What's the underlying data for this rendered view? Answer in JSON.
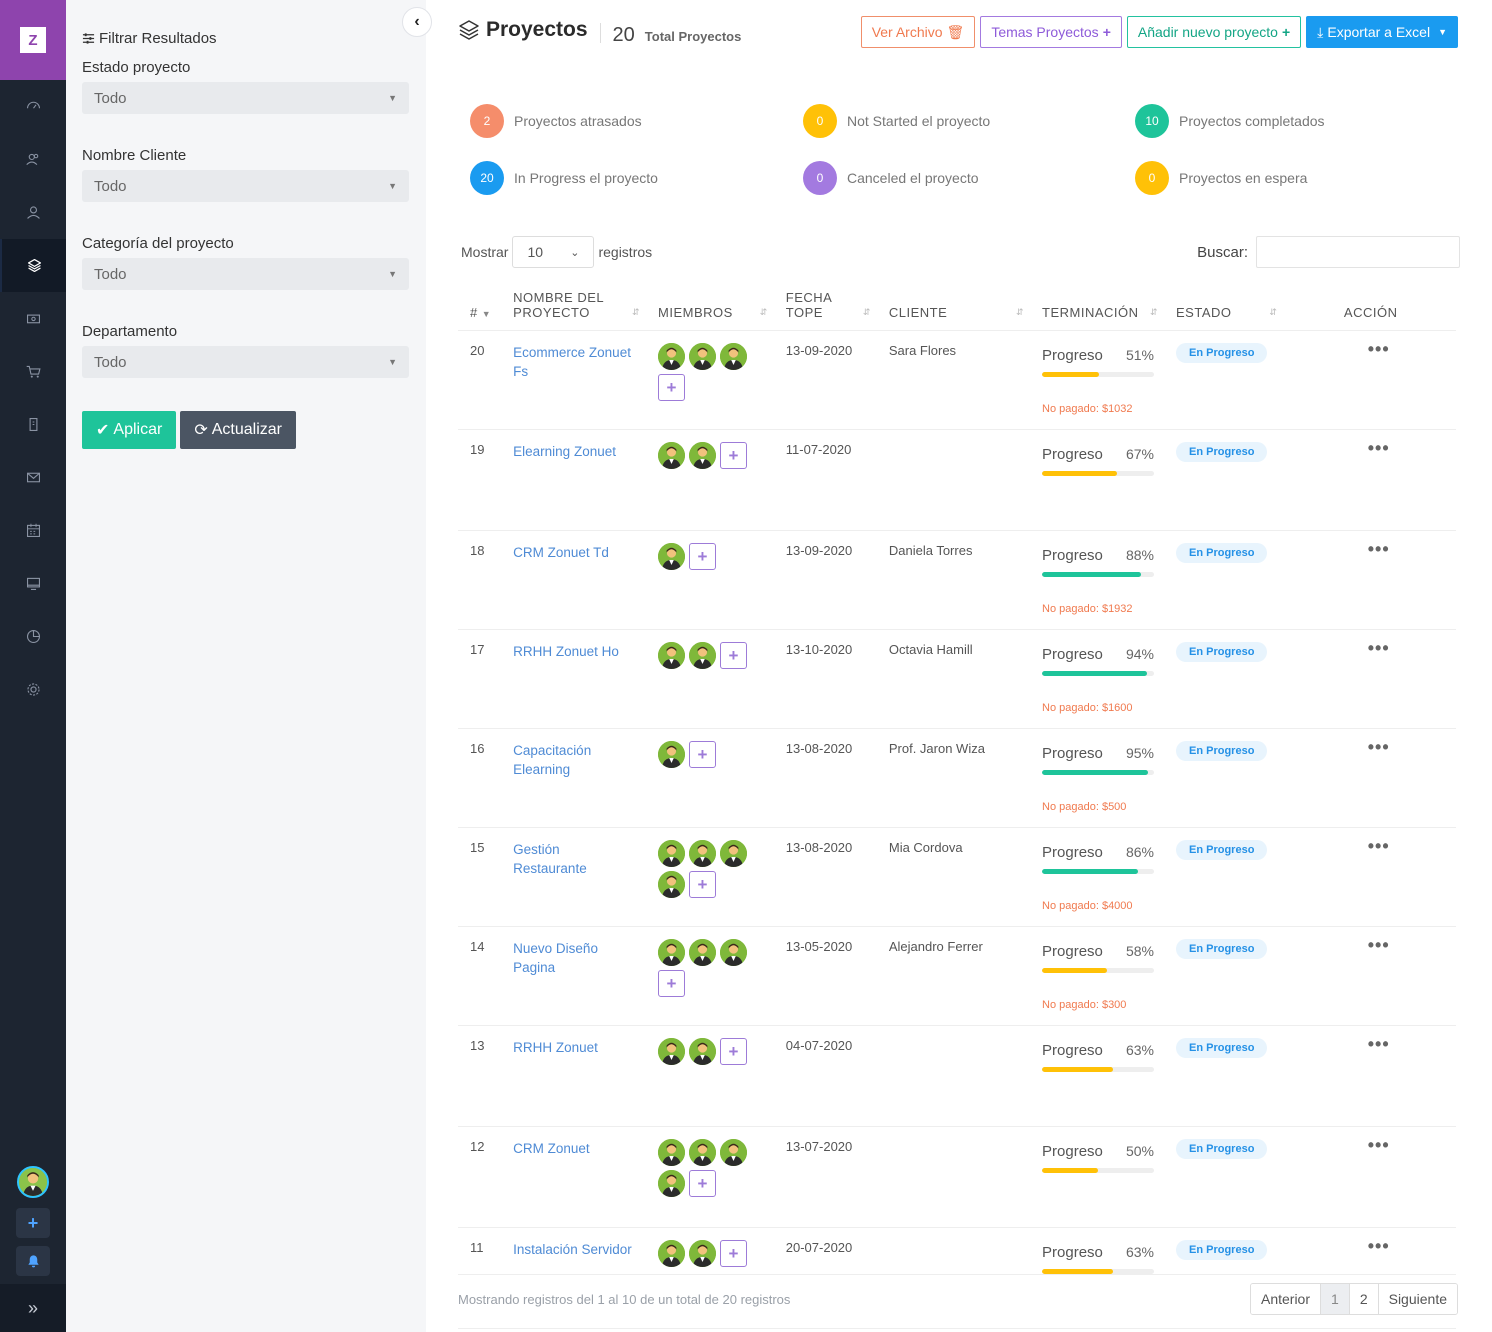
{
  "app": {
    "logo_letter": "Z"
  },
  "rail": {
    "items": [
      "dashboard-icon",
      "users-icon",
      "user-icon",
      "layers-icon",
      "money-icon",
      "cart-icon",
      "building-icon",
      "mail-icon",
      "calendar-icon",
      "monitor-icon",
      "chart-pie-icon",
      "gear-icon"
    ],
    "active": "layers-icon"
  },
  "filters": {
    "title": "Filtrar Resultados",
    "fields": [
      {
        "label": "Estado proyecto",
        "value": "Todo"
      },
      {
        "label": "Nombre Cliente",
        "value": "Todo"
      },
      {
        "label": "Categoría del proyecto",
        "value": "Todo"
      },
      {
        "label": "Departamento",
        "value": "Todo"
      }
    ],
    "apply_label": "Aplicar",
    "refresh_label": "Actualizar"
  },
  "header": {
    "title": "Proyectos",
    "count": "20",
    "count_label": "Total Proyectos"
  },
  "actions": {
    "archive": "Ver Archivo",
    "themes": "Temas Proyectos",
    "add": "Añadir nuevo proyecto",
    "export": "Exportar a Excel"
  },
  "stats": [
    {
      "value": "2",
      "label": "Proyectos atrasados",
      "color": "#f58d6b"
    },
    {
      "value": "0",
      "label": "Not Started el proyecto",
      "color": "#ffc107"
    },
    {
      "value": "10",
      "label": "Proyectos completados",
      "color": "#1ec49a"
    },
    {
      "value": "20",
      "label": "In Progress el proyecto",
      "color": "#1a9bf0"
    },
    {
      "value": "0",
      "label": "Canceled el proyecto",
      "color": "#a37ae0"
    },
    {
      "value": "0",
      "label": "Proyectos en espera",
      "color": "#ffc107"
    }
  ],
  "table_controls": {
    "show_label": "Mostrar",
    "page_length": "10",
    "records_label": "registros",
    "search_label": "Buscar:"
  },
  "columns": [
    "#",
    "NOMBRE DEL PROYECTO",
    "MIEMBROS",
    "FECHA TOPE",
    "CLIENTE",
    "TERMINACIÓN",
    "ESTADO",
    "ACCIÓN"
  ],
  "progress_label": "Progreso",
  "rows": [
    {
      "id": "20",
      "name": "Ecommerce Zonuet Fs",
      "members": 3,
      "deadline": "13-09-2020",
      "client": "Sara Flores",
      "progress": 51,
      "unpaid": "No pagado: $1032",
      "status": "En Progreso"
    },
    {
      "id": "19",
      "name": "Elearning Zonuet",
      "members": 2,
      "deadline": "11-07-2020",
      "client": "",
      "progress": 67,
      "unpaid": "",
      "status": "En Progreso"
    },
    {
      "id": "18",
      "name": "CRM Zonuet Td",
      "members": 1,
      "deadline": "13-09-2020",
      "client": "Daniela Torres",
      "progress": 88,
      "unpaid": "No pagado: $1932",
      "status": "En Progreso"
    },
    {
      "id": "17",
      "name": "RRHH Zonuet Ho",
      "members": 2,
      "deadline": "13-10-2020",
      "client": "Octavia Hamill",
      "progress": 94,
      "unpaid": "No pagado: $1600",
      "status": "En Progreso"
    },
    {
      "id": "16",
      "name": "Capacitación Elearning",
      "members": 1,
      "deadline": "13-08-2020",
      "client": "Prof. Jaron Wiza",
      "progress": 95,
      "unpaid": "No pagado: $500",
      "status": "En Progreso"
    },
    {
      "id": "15",
      "name": "Gestión Restaurante",
      "members": 4,
      "deadline": "13-08-2020",
      "client": "Mia Cordova",
      "progress": 86,
      "unpaid": "No pagado: $4000",
      "status": "En Progreso"
    },
    {
      "id": "14",
      "name": "Nuevo Diseño Pagina",
      "members": 3,
      "deadline": "13-05-2020",
      "client": "Alejandro Ferrer",
      "progress": 58,
      "unpaid": "No pagado: $300",
      "status": "En Progreso"
    },
    {
      "id": "13",
      "name": "RRHH Zonuet",
      "members": 2,
      "deadline": "04-07-2020",
      "client": "",
      "progress": 63,
      "unpaid": "",
      "status": "En Progreso"
    },
    {
      "id": "12",
      "name": "CRM Zonuet",
      "members": 4,
      "deadline": "13-07-2020",
      "client": "",
      "progress": 50,
      "unpaid": "",
      "status": "En Progreso"
    },
    {
      "id": "11",
      "name": "Instalación Servidor",
      "members": 2,
      "deadline": "20-07-2020",
      "client": "",
      "progress": 63,
      "unpaid": "",
      "status": "En Progreso"
    }
  ],
  "footer": {
    "info": "Mostrando registros del 1 al 10 de un total de 20 registros",
    "prev": "Anterior",
    "pages": [
      "1",
      "2"
    ],
    "next": "Siguiente"
  },
  "colors": {
    "bar_yellow": "#ffc107",
    "bar_green": "#1ec49a"
  }
}
